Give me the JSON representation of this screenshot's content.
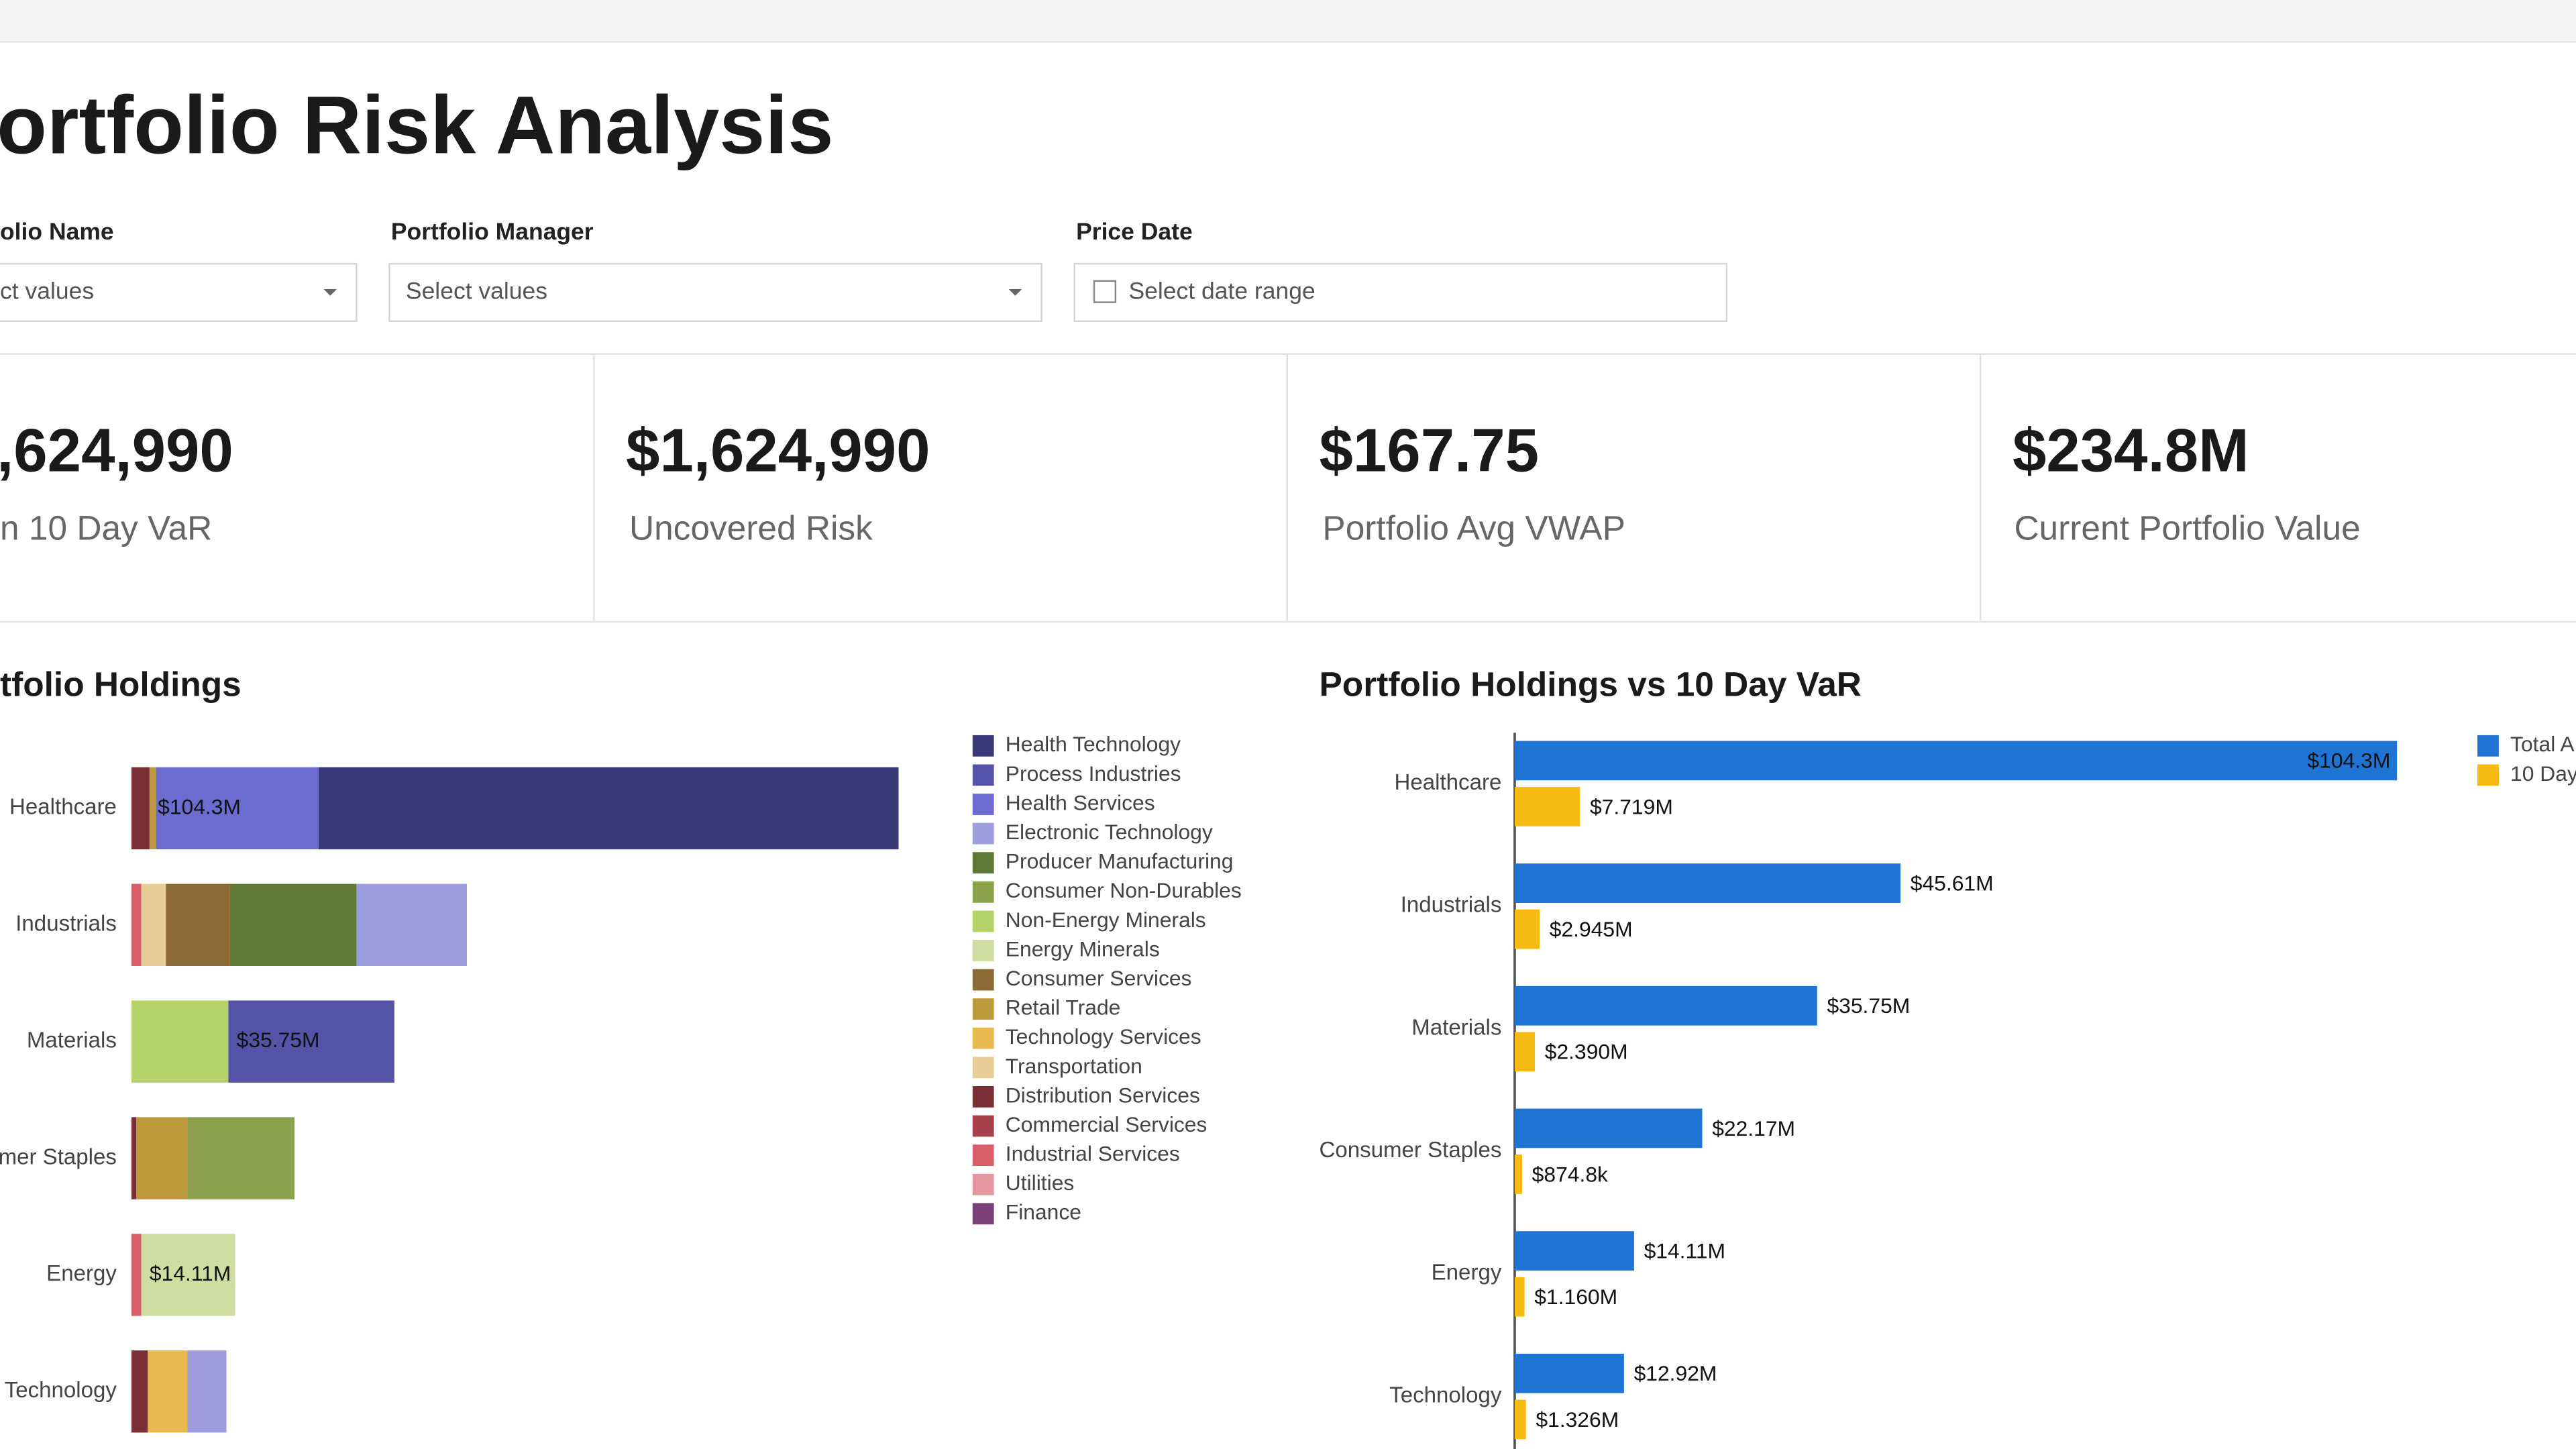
{
  "header": {
    "title": "ortfolio Risk Analysis"
  },
  "filters": [
    {
      "label": "olio Name",
      "placeholder": "ct values"
    },
    {
      "label": "Portfolio Manager",
      "placeholder": "Select values"
    },
    {
      "label": "Price Date",
      "placeholder": "Select date range"
    }
  ],
  "kpis": [
    {
      "value": ",624,990",
      "label": "n 10 Day VaR"
    },
    {
      "value": "$1,624,990",
      "label": "Uncovered Risk"
    },
    {
      "value": "$167.75",
      "label": "Portfolio Avg VWAP"
    },
    {
      "value": "$234.8M",
      "label": "Current Portfolio Value"
    }
  ],
  "chart_data": [
    {
      "type": "bar",
      "orientation": "horizontal",
      "stacked": true,
      "title": "tfolio Holdings",
      "categories": [
        "Healthcare",
        "Industrials",
        "Materials",
        "mer Staples",
        "Energy",
        "Technology"
      ],
      "xlim": [
        0,
        110
      ],
      "total_labels": [
        "$104.3M",
        null,
        "$35.75M",
        null,
        "$14.11M",
        null
      ],
      "series": [
        {
          "name": "Health Technology",
          "color": "#3b3a78",
          "values": [
            78.85,
            null,
            null,
            null,
            null,
            null
          ]
        },
        {
          "name": "Process Industries",
          "color": "#5453a8",
          "values": [
            null,
            null,
            22.57,
            null,
            null,
            null
          ]
        },
        {
          "name": "Health Services",
          "color": "#6b6bd0",
          "values": [
            22.1,
            null,
            null,
            null,
            null,
            null
          ]
        },
        {
          "name": "Electronic Technology",
          "color": "#9e9edf",
          "values": [
            null,
            15.01,
            null,
            null,
            null,
            5.33
          ]
        },
        {
          "name": "Producer Manufacturing",
          "color": "#5e7a36",
          "values": [
            null,
            17.2,
            null,
            null,
            null,
            null
          ]
        },
        {
          "name": "Consumer Non-Durables",
          "color": "#8ba14c",
          "values": [
            null,
            null,
            null,
            14.58,
            null,
            null
          ]
        },
        {
          "name": "Non-Energy Minerals",
          "color": "#b6d36b",
          "values": [
            null,
            null,
            13.18,
            null,
            null,
            null
          ]
        },
        {
          "name": "Energy Minerals",
          "color": "#cfdda0",
          "values": [
            null,
            null,
            null,
            null,
            12.77,
            null
          ]
        },
        {
          "name": "Consumer Services",
          "color": "#8b6a35",
          "values": [
            null,
            8.71,
            null,
            null,
            null,
            null
          ]
        },
        {
          "name": "Retail Trade",
          "color": "#bd9b3c",
          "values": [
            0.89,
            null,
            null,
            6.92,
            null,
            null
          ]
        },
        {
          "name": "Technology Services",
          "color": "#e8b94e",
          "values": [
            null,
            null,
            null,
            null,
            null,
            5.36
          ]
        },
        {
          "name": "Transportation",
          "color": "#e8cd98",
          "values": [
            null,
            3.35,
            null,
            null,
            null,
            null
          ]
        },
        {
          "name": "Distribution Services",
          "color": "#7a2f35",
          "values": [
            2.46,
            null,
            null,
            0.67,
            null,
            2.23
          ]
        },
        {
          "name": "Commercial Services",
          "color": "#a8424a",
          "values": [
            null,
            null,
            null,
            null,
            null,
            null
          ]
        },
        {
          "name": "Industrial Services",
          "color": "#d85f6a",
          "values": [
            null,
            1.34,
            null,
            null,
            1.34,
            null
          ]
        },
        {
          "name": "Utilities",
          "color": "#e3969d",
          "values": [
            null,
            null,
            null,
            null,
            null,
            null
          ]
        },
        {
          "name": "Finance",
          "color": "#7b3f7a",
          "values": [
            null,
            null,
            null,
            null,
            null,
            null
          ]
        }
      ]
    },
    {
      "type": "bar",
      "orientation": "horizontal",
      "stacked": false,
      "title": "Portfolio Holdings vs 10 Day VaR",
      "categories": [
        "Healthcare",
        "Industrials",
        "Materials",
        "Consumer Staples",
        "Energy",
        "Technology"
      ],
      "xlim": [
        0,
        110
      ],
      "series": [
        {
          "name": "Total A",
          "color": "#1f74d4",
          "values": [
            104.3,
            45.61,
            35.75,
            22.17,
            14.11,
            12.92
          ],
          "value_labels": [
            "$104.3M",
            "$45.61M",
            "$35.75M",
            "$22.17M",
            "$14.11M",
            "$12.92M"
          ]
        },
        {
          "name": "10 Day",
          "color": "#f5bb12",
          "values": [
            7.719,
            2.945,
            2.39,
            0.8748,
            1.16,
            1.326
          ],
          "value_labels": [
            "$7.719M",
            "$2.945M",
            "$2.390M",
            "$874.8k",
            "$1.160M",
            "$1.326M"
          ]
        }
      ]
    }
  ]
}
